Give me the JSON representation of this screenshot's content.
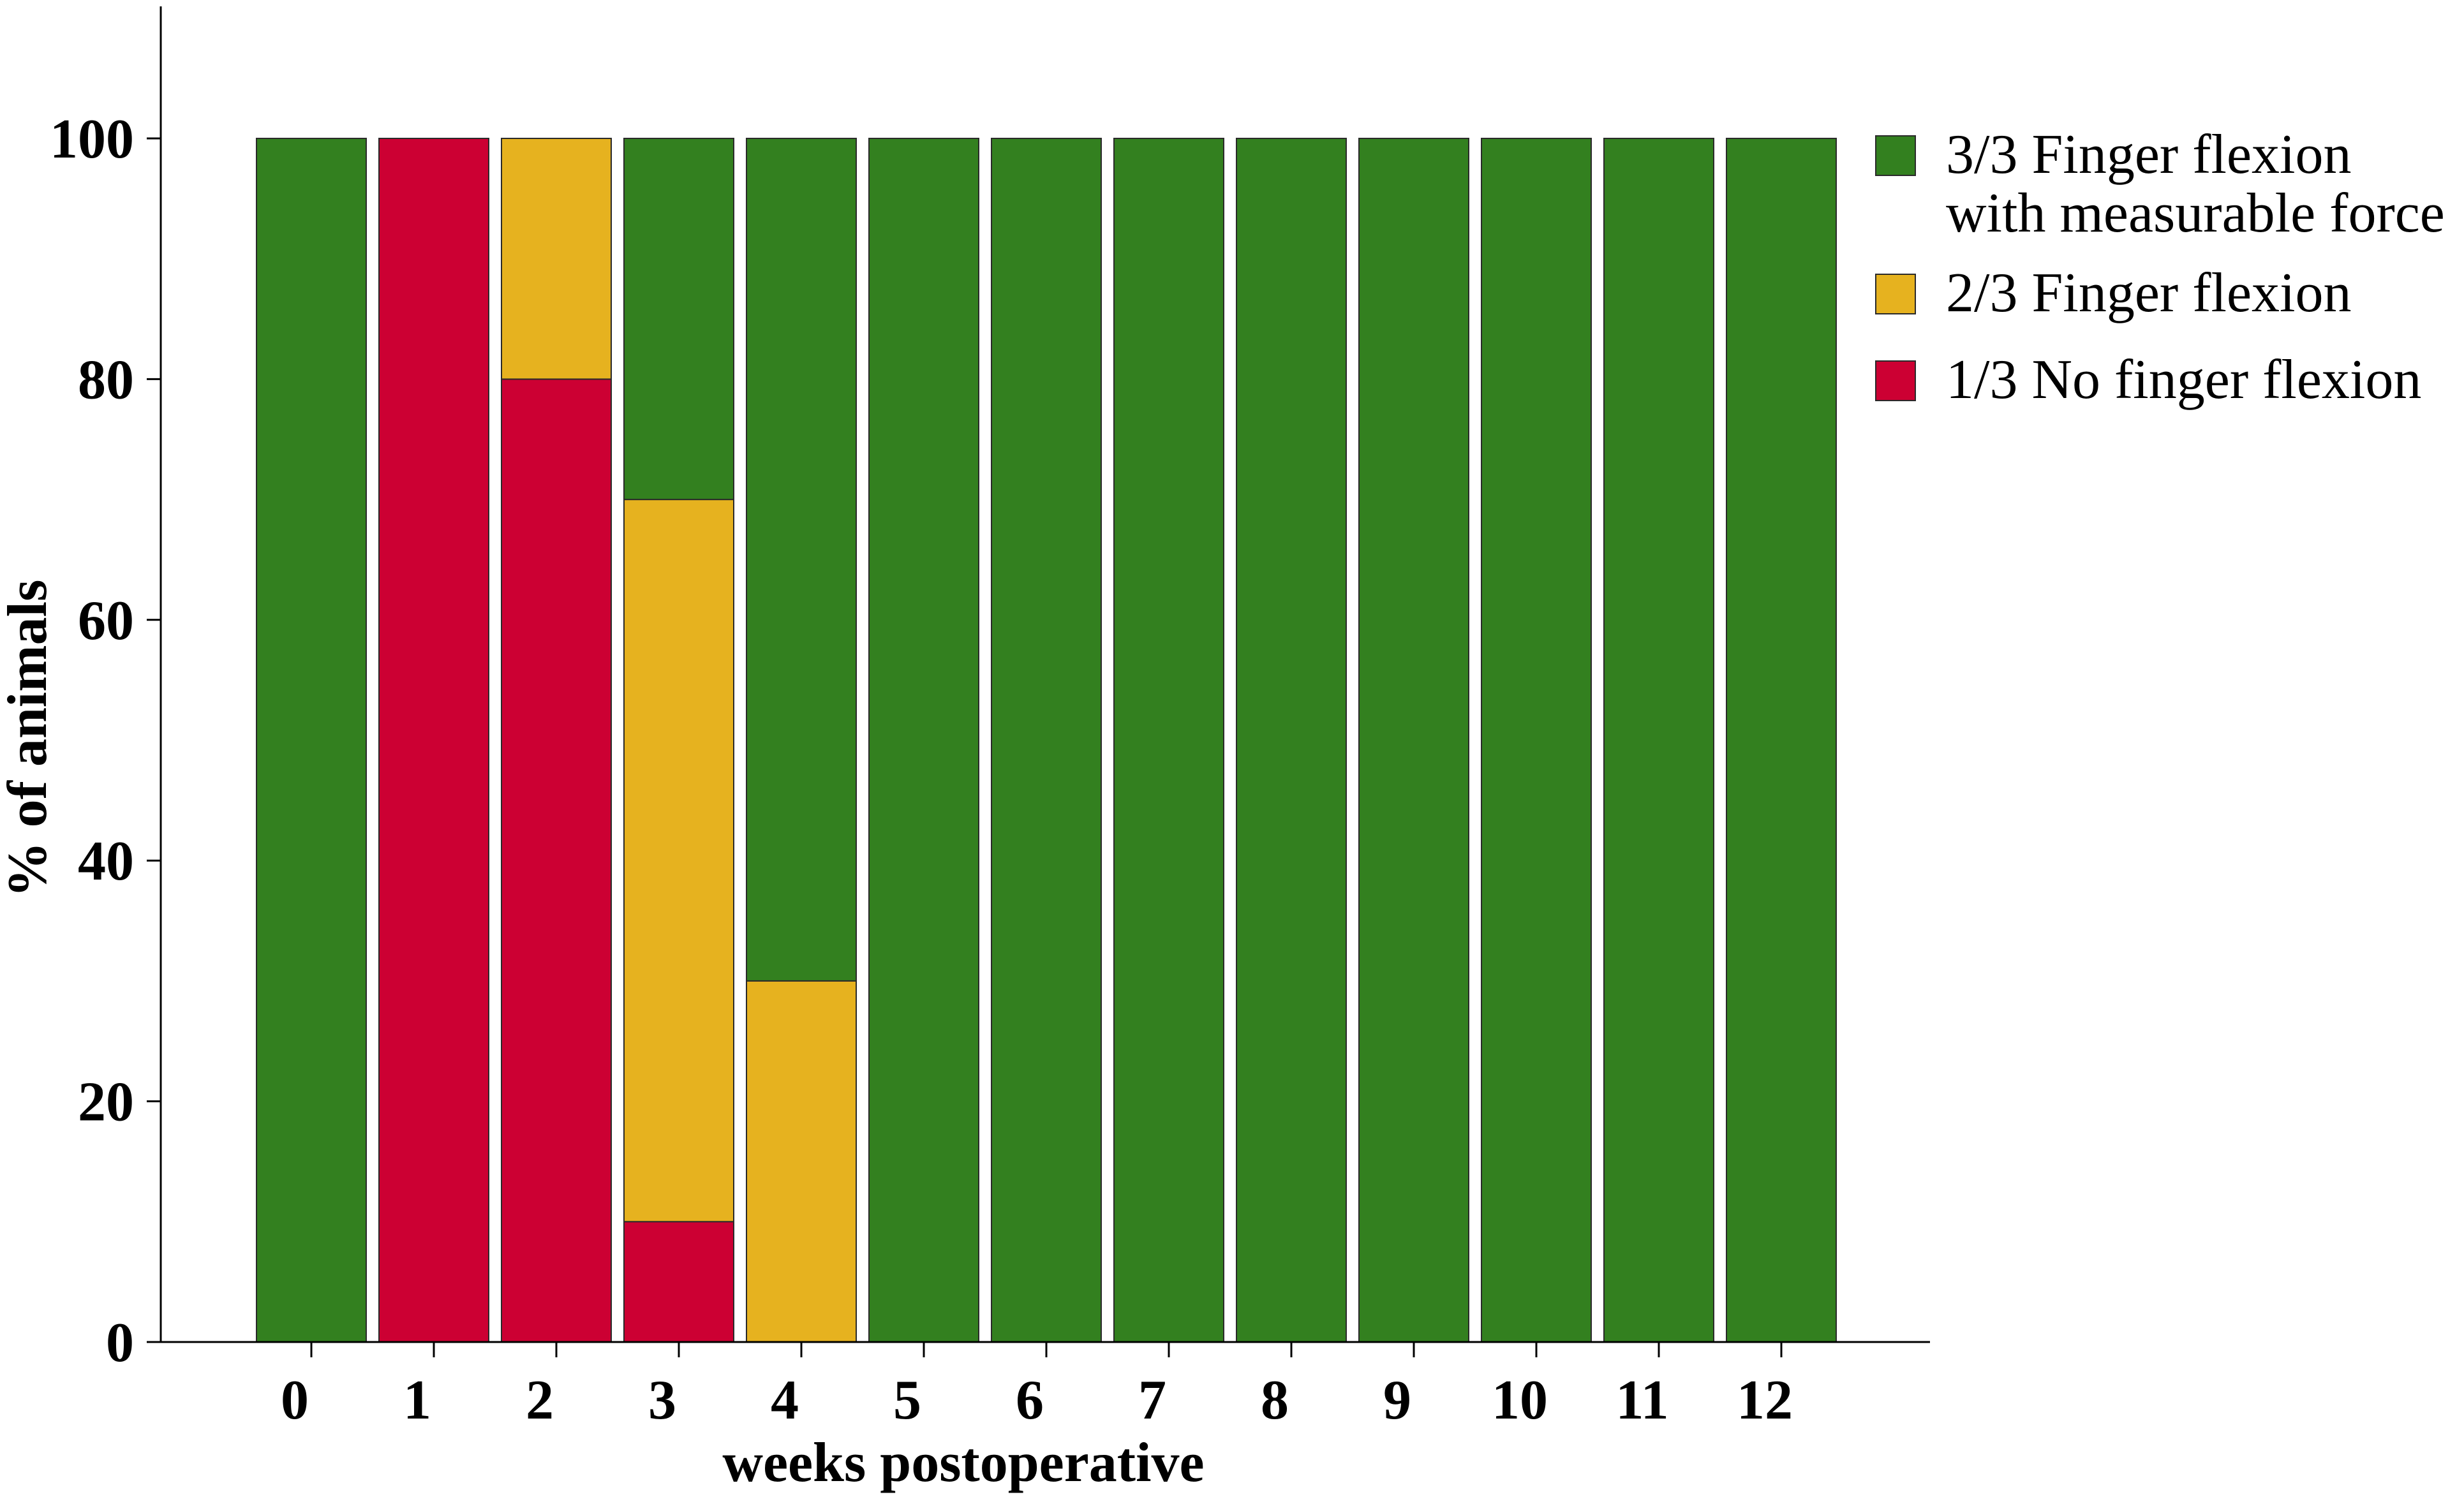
{
  "chart_data": {
    "type": "bar",
    "stacked": true,
    "title": "",
    "xlabel": "weeks postoperative",
    "ylabel": "% of animals",
    "ylim": [
      0,
      100
    ],
    "yticks": [
      0,
      20,
      40,
      60,
      80,
      100
    ],
    "grid": false,
    "legend_position": "right",
    "categories": [
      "0",
      "1",
      "2",
      "3",
      "4",
      "5",
      "6",
      "7",
      "8",
      "9",
      "10",
      "11",
      "12"
    ],
    "series": [
      {
        "name": "1/3 No finger flexion",
        "color": "#cc0033",
        "values": [
          0,
          100,
          80,
          10,
          0,
          0,
          0,
          0,
          0,
          0,
          0,
          0,
          0
        ]
      },
      {
        "name": "2/3 Finger flexion",
        "color": "#e6b21f",
        "values": [
          0,
          0,
          20,
          60,
          30,
          0,
          0,
          0,
          0,
          0,
          0,
          0,
          0
        ]
      },
      {
        "name": "3/3 Finger flexion with measurable force",
        "color": "#33801f",
        "values": [
          100,
          0,
          0,
          30,
          70,
          100,
          100,
          100,
          100,
          100,
          100,
          100,
          100
        ]
      }
    ],
    "legend": [
      {
        "series": "3/3 Finger flexion with measurable force",
        "lines": [
          "3/3 Finger flexion",
          "with measurable force"
        ],
        "color": "#33801f"
      },
      {
        "series": "2/3 Finger flexion",
        "lines": [
          "2/3 Finger flexion"
        ],
        "color": "#e6b21f"
      },
      {
        "series": "1/3 No finger flexion",
        "lines": [
          "1/3 No finger flexion"
        ],
        "color": "#cc0033"
      }
    ]
  }
}
